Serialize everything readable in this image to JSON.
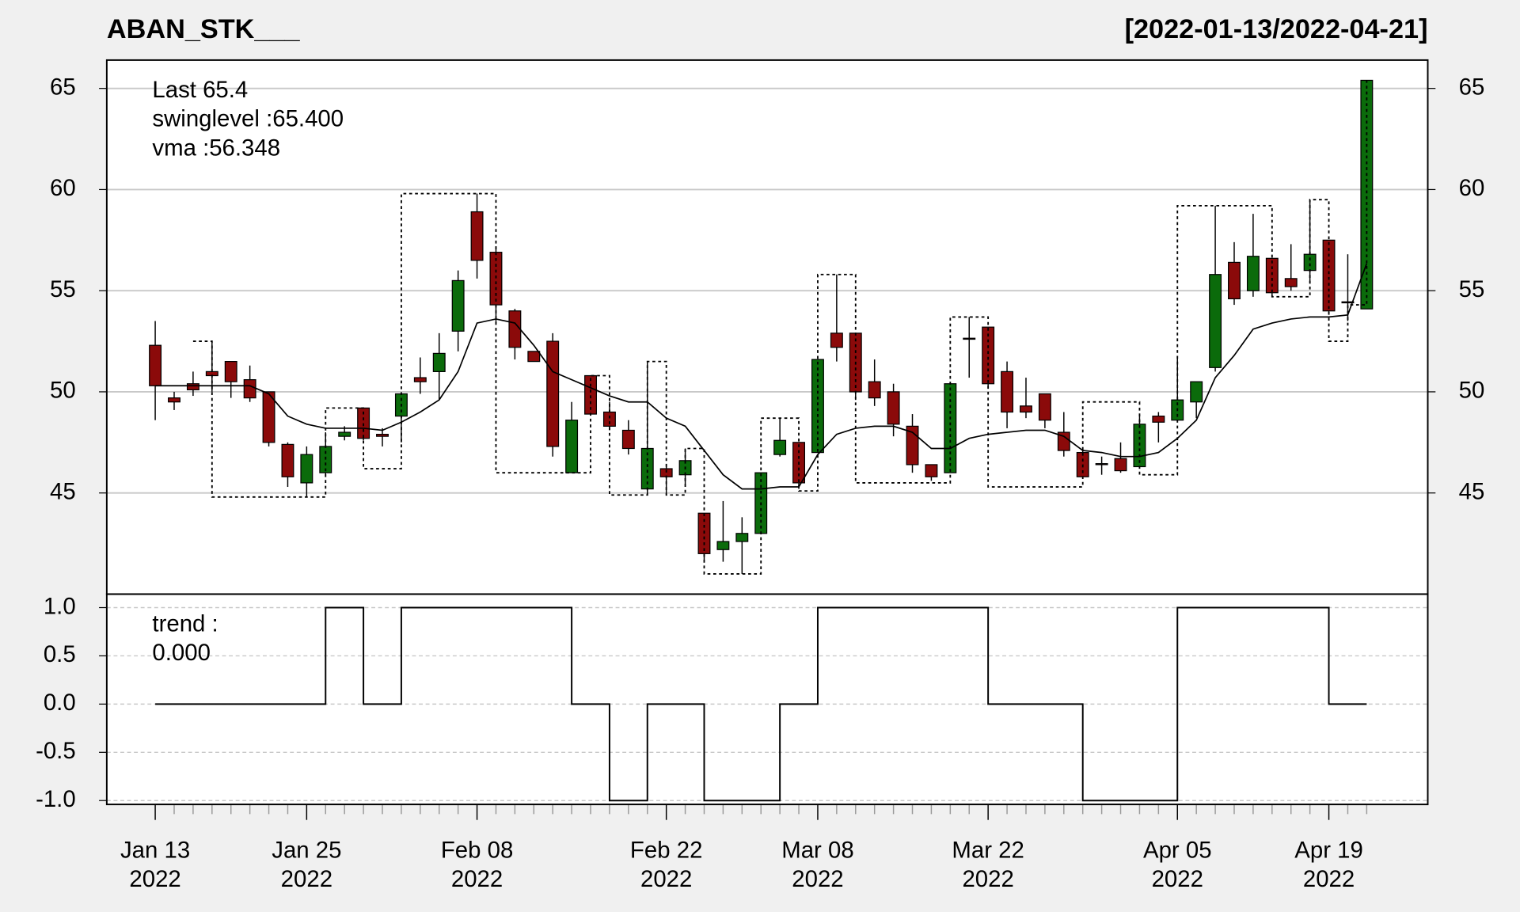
{
  "chart_data": [
    {
      "type": "candlestick",
      "title": "ABAN_STK___",
      "subtitle": "[2022-01-13/2022-04-21]",
      "up_color": "#0b6b0b",
      "down_color": "#8b0a0a",
      "open": [
        52.3,
        49.7,
        50.4,
        51.0,
        51.5,
        50.6,
        50.0,
        47.4,
        45.5,
        46.0,
        47.8,
        49.2,
        47.9,
        48.8,
        50.7,
        51.0,
        53.0,
        58.9,
        56.9,
        54.0,
        52.0,
        52.5,
        46.0,
        50.8,
        49.0,
        48.1,
        45.2,
        46.2,
        45.9,
        44.0,
        42.2,
        42.6,
        43.0,
        46.9,
        47.5,
        47.0,
        52.9,
        52.9,
        50.5,
        50.0,
        48.3,
        46.4,
        46.0,
        52.65,
        53.2,
        51.0,
        49.3,
        49.9,
        48.0,
        47.0,
        46.45,
        46.7,
        46.3,
        48.8,
        48.6,
        49.5,
        51.2,
        56.4,
        55.0,
        56.6,
        55.6,
        56.0,
        57.5,
        54.45,
        54.1
      ],
      "high": [
        53.5,
        50.0,
        51.0,
        52.5,
        51.5,
        51.3,
        50.0,
        47.5,
        47.3,
        48.0,
        48.3,
        49.2,
        48.2,
        49.9,
        51.7,
        52.9,
        56.0,
        59.8,
        57.2,
        54.1,
        52.0,
        52.9,
        49.5,
        50.8,
        49.5,
        48.6,
        51.5,
        46.3,
        47.2,
        44.0,
        44.6,
        43.8,
        46.0,
        48.7,
        47.5,
        51.6,
        55.8,
        52.9,
        51.6,
        50.4,
        48.9,
        46.4,
        50.4,
        53.7,
        53.2,
        51.5,
        50.7,
        49.9,
        49.0,
        47.2,
        46.8,
        47.5,
        48.8,
        49.0,
        51.7,
        50.5,
        59.2,
        57.4,
        58.8,
        56.6,
        57.3,
        59.5,
        57.5,
        56.8,
        65.4
      ],
      "low": [
        48.6,
        49.1,
        49.8,
        50.0,
        49.7,
        49.5,
        47.3,
        45.3,
        44.8,
        45.9,
        47.6,
        47.6,
        47.3,
        47.5,
        49.9,
        49.6,
        52.0,
        55.6,
        53.4,
        51.6,
        51.5,
        46.8,
        46.0,
        48.9,
        48.1,
        46.9,
        44.9,
        44.9,
        45.4,
        41.7,
        41.6,
        41.0,
        43.0,
        46.8,
        45.2,
        47.0,
        51.5,
        49.6,
        49.3,
        47.8,
        46.0,
        45.6,
        46.0,
        50.7,
        50.2,
        48.2,
        48.7,
        48.2,
        46.8,
        45.7,
        45.9,
        46.0,
        46.3,
        47.5,
        48.5,
        48.7,
        51.0,
        54.3,
        54.7,
        54.7,
        55.0,
        55.4,
        53.9,
        53.5,
        54.1
      ],
      "close": [
        50.3,
        49.5,
        50.1,
        50.8,
        50.5,
        49.7,
        47.5,
        45.8,
        46.9,
        47.3,
        48.0,
        47.7,
        47.8,
        49.9,
        50.5,
        51.9,
        55.5,
        56.5,
        54.3,
        52.2,
        51.5,
        47.3,
        48.6,
        48.9,
        48.3,
        47.2,
        47.2,
        45.8,
        46.6,
        42.0,
        42.6,
        43.0,
        46.0,
        47.6,
        45.5,
        51.6,
        52.2,
        50.0,
        49.7,
        48.4,
        46.4,
        45.8,
        50.4,
        52.6,
        50.4,
        49.0,
        49.0,
        48.6,
        47.1,
        45.8,
        46.4,
        46.1,
        48.4,
        48.5,
        49.6,
        50.5,
        55.8,
        54.6,
        56.7,
        54.9,
        55.2,
        56.8,
        54.0,
        54.4,
        65.4
      ],
      "series": [
        {
          "name": "vma",
          "style": "line",
          "color": "#000000",
          "values": [
            50.3,
            50.3,
            50.3,
            50.3,
            50.3,
            50.3,
            49.9,
            48.8,
            48.4,
            48.2,
            48.2,
            48.2,
            48.1,
            48.5,
            49.0,
            49.6,
            51.0,
            53.4,
            53.6,
            53.4,
            52.3,
            51.0,
            50.6,
            50.2,
            49.8,
            49.5,
            49.5,
            48.7,
            48.3,
            47.1,
            45.9,
            45.2,
            45.2,
            45.3,
            45.3,
            46.9,
            47.9,
            48.2,
            48.3,
            48.3,
            48.0,
            47.2,
            47.2,
            47.7,
            47.9,
            48.0,
            48.1,
            48.1,
            47.8,
            47.1,
            47.0,
            46.8,
            46.8,
            47.0,
            47.7,
            48.6,
            50.7,
            51.8,
            53.1,
            53.4,
            53.6,
            53.7,
            53.7,
            53.8,
            56.348
          ]
        },
        {
          "name": "swinglevel",
          "style": "step-dotted",
          "color": "#000000",
          "values": [
            null,
            null,
            52.5,
            44.8,
            44.8,
            44.8,
            44.8,
            44.8,
            44.8,
            49.2,
            49.2,
            46.2,
            46.2,
            59.8,
            59.8,
            59.8,
            59.8,
            59.8,
            46.0,
            46.0,
            46.0,
            46.0,
            46.0,
            50.8,
            44.9,
            44.9,
            51.5,
            44.9,
            47.2,
            41.0,
            41.0,
            41.0,
            48.7,
            48.7,
            45.1,
            55.8,
            55.8,
            45.5,
            45.5,
            45.5,
            45.5,
            45.5,
            53.7,
            53.7,
            45.3,
            45.3,
            45.3,
            45.3,
            45.3,
            49.5,
            49.5,
            49.5,
            45.9,
            45.9,
            59.2,
            59.2,
            59.2,
            59.2,
            59.2,
            54.7,
            54.7,
            59.5,
            52.5,
            54.3,
            65.4
          ]
        }
      ],
      "annotations": [
        {
          "text": "Last 65.4",
          "color": "#0b6b0b"
        },
        {
          "text": "swinglevel :65.400",
          "color": "#000000"
        },
        {
          "text": "vma :56.348",
          "color": "#000000"
        }
      ],
      "ylim": [
        40,
        66.4
      ],
      "yticks": [
        45,
        50,
        55,
        60,
        65
      ],
      "grid": true
    },
    {
      "type": "step",
      "categories": [
        "Jan 13\n2022",
        null,
        null,
        null,
        null,
        null,
        null,
        null,
        "Jan 25\n2022",
        null,
        null,
        null,
        null,
        null,
        null,
        null,
        null,
        "Feb 08\n2022",
        null,
        null,
        null,
        null,
        null,
        null,
        null,
        null,
        null,
        "Feb 22\n2022",
        null,
        null,
        null,
        null,
        null,
        null,
        null,
        "Mar 08\n2022",
        null,
        null,
        null,
        null,
        null,
        null,
        null,
        null,
        "Mar 22\n2022",
        null,
        null,
        null,
        null,
        null,
        null,
        null,
        null,
        null,
        "Apr 05\n2022",
        null,
        null,
        null,
        null,
        null,
        null,
        null,
        "Apr 19\n2022",
        null,
        null
      ],
      "series": [
        {
          "name": "trend",
          "color": "#000000",
          "values": [
            0,
            0,
            0,
            0,
            0,
            0,
            0,
            0,
            0,
            1,
            1,
            0,
            0,
            1,
            1,
            1,
            1,
            1,
            1,
            1,
            1,
            1,
            0,
            0,
            -1,
            -1,
            0,
            0,
            0,
            -1,
            -1,
            -1,
            -1,
            0,
            0,
            1,
            1,
            1,
            1,
            1,
            1,
            1,
            1,
            1,
            0,
            0,
            0,
            0,
            0,
            -1,
            -1,
            -1,
            -1,
            -1,
            1,
            1,
            1,
            1,
            1,
            1,
            1,
            1,
            0,
            0,
            0
          ]
        }
      ],
      "annotations": [
        {
          "text": "trend :",
          "color": "#000000"
        },
        {
          "text": "0.000",
          "color": "#000000"
        }
      ],
      "ylim": [
        -1.04,
        1.14
      ],
      "yticks": [
        {
          "value": 1,
          "label": "1.0"
        },
        {
          "value": 0.5,
          "label": "0.5"
        },
        {
          "value": 0,
          "label": "0.0"
        },
        {
          "value": -0.5,
          "label": "-0.5"
        },
        {
          "value": -1,
          "label": "-1.0"
        }
      ],
      "grid": true
    }
  ]
}
